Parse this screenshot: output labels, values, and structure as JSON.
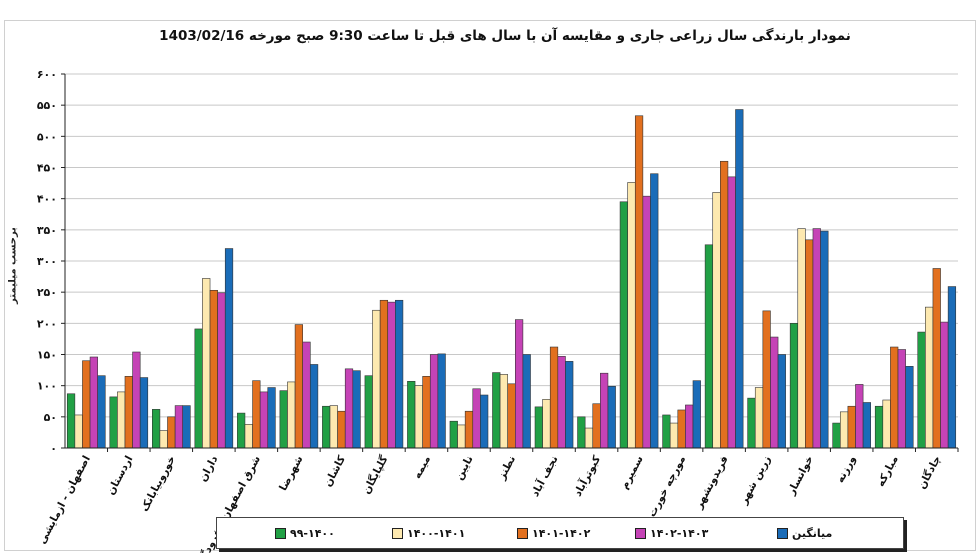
{
  "chart_data": {
    "type": "bar",
    "title": "نمودار بارندگی سال زراعی جاری و مقایسه آن با سال های قبل تا ساعت 9:30 صبح مورخه 1403/02/16",
    "ylabel": "برحسب میلیمتر",
    "xlabel": "",
    "ylim": [
      0,
      600
    ],
    "yticks": [
      0,
      50,
      100,
      150,
      200,
      250,
      300,
      350,
      400,
      450,
      500,
      550,
      600
    ],
    "ytick_labels": [
      "۰",
      "۵۰",
      "۱۰۰",
      "۱۵۰",
      "۲۰۰",
      "۲۵۰",
      "۳۰۰",
      "۳۵۰",
      "۴۰۰",
      "۴۵۰",
      "۵۰۰",
      "۵۵۰",
      "۶۰۰"
    ],
    "grid": true,
    "legend_position": "bottom",
    "categories": [
      "اصفهان - ازمایشی",
      "اردستان",
      "خوروبیابانک",
      "داران",
      "شرق اصفهان - فرودگاه",
      "شهرضا",
      "کاشان",
      "گلپایگان",
      "میمه",
      "نایین",
      "نطنز",
      "نجف آباد",
      "کبوترآباد",
      "سمیرم",
      "مورچه خورت",
      "فریدونشهر",
      "زرین شهر",
      "خوانسار",
      "ورزنه",
      "مبارکه",
      "چادگان"
    ],
    "series": [
      {
        "name": "۹۹-۱۴۰۰",
        "color": "#21a045",
        "values": [
          87,
          82,
          62,
          191,
          56,
          92,
          67,
          116,
          107,
          43,
          121,
          66,
          50,
          395,
          53,
          326,
          80,
          200,
          40,
          67,
          186
        ]
      },
      {
        "name": "۱۴۰۰-۱۴۰۱",
        "color": "#fde9b0",
        "values": [
          53,
          90,
          28,
          272,
          38,
          106,
          68,
          221,
          100,
          37,
          118,
          78,
          32,
          426,
          40,
          410,
          97,
          352,
          58,
          77,
          226
        ]
      },
      {
        "name": "۱۴۰۱-۱۴۰۲",
        "color": "#e2701f",
        "values": [
          140,
          115,
          50,
          253,
          108,
          198,
          59,
          237,
          115,
          59,
          103,
          162,
          71,
          533,
          61,
          460,
          220,
          334,
          67,
          162,
          288
        ]
      },
      {
        "name": "۱۴۰۲-۱۴۰۳",
        "color": "#c543b6",
        "values": [
          146,
          154,
          68,
          249,
          90,
          170,
          127,
          234,
          150,
          95,
          206,
          147,
          120,
          404,
          69,
          435,
          178,
          352,
          102,
          158,
          202
        ]
      },
      {
        "name": "میانگین",
        "color": "#1a6cb8",
        "values": [
          116,
          113,
          68,
          320,
          97,
          134,
          124,
          237,
          151,
          85,
          150,
          139,
          99,
          440,
          108,
          543,
          150,
          348,
          73,
          131,
          259
        ]
      }
    ]
  }
}
